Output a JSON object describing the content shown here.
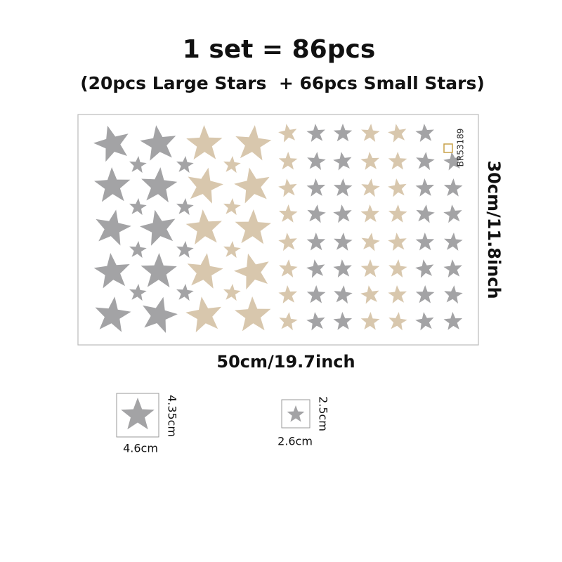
{
  "header": {
    "title": "1 set = 86pcs",
    "subtitle": "(20pcs Large Stars  + 66pcs Small Stars)"
  },
  "sheet": {
    "code": "BR53189",
    "height_label": "30cm/11.8inch",
    "width_label": "50cm/19.7inch"
  },
  "samples": [
    {
      "height": "4.35cm",
      "width": "4.6cm"
    },
    {
      "height": "2.5cm",
      "width": "2.6cm"
    }
  ]
}
